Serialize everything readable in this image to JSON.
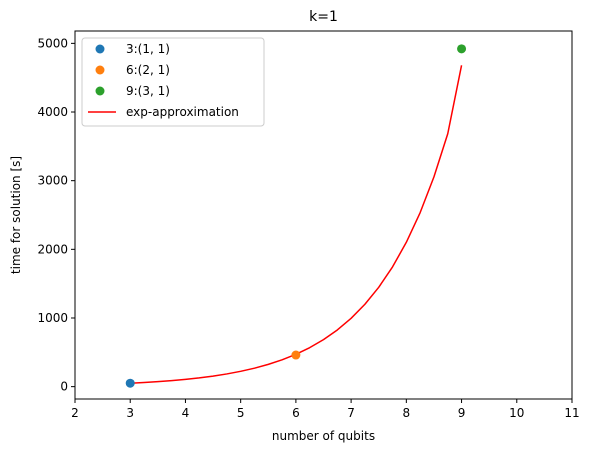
{
  "chart_data": {
    "type": "scatter",
    "title": "k=1",
    "xlabel": "number of qubits",
    "ylabel": "time for solution [s]",
    "xlim": [
      2,
      11
    ],
    "ylim": [
      -180,
      5180
    ],
    "x_ticks": [
      2,
      3,
      4,
      5,
      6,
      7,
      8,
      9,
      10,
      11
    ],
    "y_ticks": [
      0,
      1000,
      2000,
      3000,
      4000,
      5000
    ],
    "grid": false,
    "legend_position": "top-left",
    "series": [
      {
        "name": "3:(1, 1)",
        "kind": "scatter",
        "color": "#1f77b4",
        "points": [
          {
            "x": 3,
            "y": 50
          }
        ]
      },
      {
        "name": "6:(2, 1)",
        "kind": "scatter",
        "color": "#ff7f0e",
        "points": [
          {
            "x": 6,
            "y": 460
          }
        ]
      },
      {
        "name": "9:(3, 1)",
        "kind": "scatter",
        "color": "#2ca02c",
        "points": [
          {
            "x": 9,
            "y": 4920
          }
        ]
      },
      {
        "name": "exp-approximation",
        "kind": "line",
        "color": "#ff0000",
        "x": [
          3.0,
          3.25,
          3.5,
          3.75,
          4.0,
          4.25,
          4.5,
          4.75,
          5.0,
          5.25,
          5.5,
          5.75,
          6.0,
          6.25,
          6.5,
          6.75,
          7.0,
          7.25,
          7.5,
          7.75,
          8.0,
          8.25,
          8.5,
          8.75,
          9.0
        ],
        "y": [
          50.0,
          60.3,
          72.7,
          87.6,
          105.6,
          127.3,
          153.5,
          185.0,
          223.1,
          268.9,
          324.2,
          390.9,
          471.2,
          568.1,
          684.8,
          825.6,
          995.3,
          1199.9,
          1446.5,
          1743.8,
          2102.3,
          2534.4,
          3055.3,
          3683.3,
          4680.0
        ]
      }
    ]
  }
}
